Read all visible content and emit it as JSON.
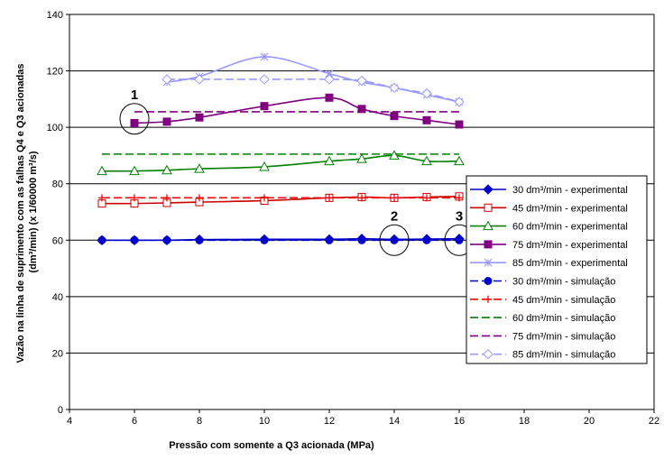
{
  "chart_data": {
    "type": "line",
    "xlabel": "Pressão com somente a Q3 acionada (MPa)",
    "ylabel_lines": [
      "Vazão na linha de suprimento com as falhas Q4 e Q3 acionadas",
      "(dm³/min) (x 1/60000 m³/s)"
    ],
    "xlim": [
      4,
      22
    ],
    "ylim": [
      0,
      140
    ],
    "x_ticks": [
      4,
      6,
      8,
      10,
      12,
      14,
      16,
      18,
      20,
      22
    ],
    "y_ticks": [
      0,
      20,
      40,
      60,
      80,
      100,
      120,
      140
    ],
    "grid": "horizontal",
    "legend_position": "right",
    "series": [
      {
        "name": "30 dm³/min - experimental",
        "color": "#0000cc",
        "dash": "solid",
        "marker": "diamond-filled",
        "x": [
          5,
          6,
          7,
          8,
          10,
          12,
          13,
          14,
          15,
          16
        ],
        "y": [
          60,
          60,
          60,
          60.2,
          60.3,
          60.3,
          60.5,
          60.3,
          60.4,
          60.5
        ]
      },
      {
        "name": "45 dm³/min - experimental",
        "color": "#cc0000",
        "dash": "solid",
        "marker": "square-open",
        "x": [
          5,
          6,
          7,
          8,
          10,
          12,
          13,
          14,
          15,
          16
        ],
        "y": [
          73,
          73,
          73.2,
          73.5,
          74,
          75,
          75.3,
          75,
          75.3,
          75.5
        ]
      },
      {
        "name": "60 dm³/min - experimental",
        "color": "#008000",
        "dash": "solid",
        "marker": "triangle-open",
        "x": [
          5,
          6,
          7,
          8,
          10,
          12,
          13,
          14,
          15,
          16
        ],
        "y": [
          84.5,
          84.5,
          84.8,
          85.3,
          86,
          88,
          88.8,
          90,
          88,
          88
        ]
      },
      {
        "name": "75 dm³/min - experimental",
        "color": "#800080",
        "dash": "solid",
        "marker": "square-filled",
        "x": [
          6,
          7,
          8,
          10,
          12,
          13,
          14,
          15,
          16
        ],
        "y": [
          101.5,
          102,
          103.5,
          107.5,
          110.5,
          106.5,
          104,
          102.5,
          101
        ]
      },
      {
        "name": "85 dm³/min - experimental",
        "color": "#9999ff",
        "dash": "solid",
        "marker": "asterisk",
        "x": [
          7,
          8,
          10,
          12,
          13,
          14,
          15,
          16
        ],
        "y": [
          116,
          118,
          125,
          119,
          116,
          114,
          111.5,
          109
        ]
      },
      {
        "name": "30 dm³/min - simulação",
        "color": "#0000cc",
        "dash": "dashed",
        "marker": "circle-filled",
        "x": [
          5,
          6,
          7,
          8,
          10,
          12,
          13,
          14,
          15,
          16
        ],
        "y": [
          60,
          60,
          60,
          60,
          60,
          60,
          60,
          60,
          60,
          60
        ]
      },
      {
        "name": "45 dm³/min - simulação",
        "color": "#ff0000",
        "dash": "dashed",
        "marker": "plus",
        "x": [
          5,
          6,
          7,
          8,
          10,
          12,
          13,
          14,
          15,
          16
        ],
        "y": [
          75,
          75,
          75,
          75,
          75,
          75,
          75,
          75,
          75,
          75
        ]
      },
      {
        "name": "60 dm³/min - simulação",
        "color": "#008000",
        "dash": "dashed",
        "marker": "none",
        "x": [
          5,
          6,
          7,
          8,
          10,
          12,
          13,
          14,
          15,
          16
        ],
        "y": [
          90.5,
          90.5,
          90.5,
          90.5,
          90.5,
          90.5,
          90.5,
          90.5,
          90.5,
          90.5
        ]
      },
      {
        "name": "75 dm³/min - simulação",
        "color": "#800080",
        "dash": "dashed",
        "marker": "none",
        "x": [
          6,
          7,
          8,
          10,
          12,
          13,
          14,
          15,
          16
        ],
        "y": [
          105.5,
          105.5,
          105.5,
          105.5,
          105.5,
          105.5,
          105.5,
          105.5,
          105.5
        ]
      },
      {
        "name": "85 dm³/min - simulação",
        "color": "#9999ff",
        "dash": "dashed",
        "marker": "diamond-open",
        "x": [
          7,
          8,
          10,
          12,
          13,
          14,
          15,
          16
        ],
        "y": [
          117,
          117,
          117,
          117,
          116.5,
          114,
          112,
          109
        ]
      }
    ],
    "annotations": [
      {
        "label": "1",
        "x": 6,
        "y": 103
      },
      {
        "label": "2",
        "x": 14,
        "y": 60
      },
      {
        "label": "3",
        "x": 16,
        "y": 60
      }
    ]
  }
}
